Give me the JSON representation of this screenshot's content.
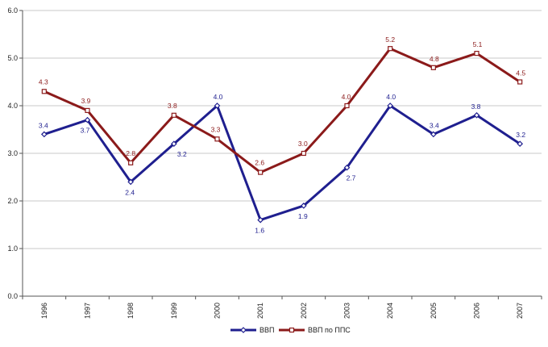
{
  "chart_data": {
    "type": "line",
    "categories": [
      "1996",
      "1997",
      "1998",
      "1999",
      "2000",
      "2001",
      "2002",
      "2003",
      "2004",
      "2005",
      "2006",
      "2007"
    ],
    "ylim": [
      0,
      6
    ],
    "yticks": [
      0,
      1,
      2,
      3,
      4,
      5,
      6
    ],
    "ytick_labels": [
      "0.0",
      "1.0",
      "2.0",
      "3.0",
      "4.0",
      "5.0",
      "6.0"
    ],
    "grid": "horizontal",
    "legend_position": "bottom",
    "series": [
      {
        "name": "ВВП",
        "color": "#1f1f8f",
        "label_color": "#1f1f8f",
        "marker": "diamond",
        "values": [
          3.4,
          3.7,
          2.4,
          3.2,
          4.0,
          1.6,
          1.9,
          2.7,
          4.0,
          3.4,
          3.8,
          3.2
        ],
        "labels": [
          "3.4",
          "3.7",
          "2.4",
          "3.2",
          "4.0",
          "1.6",
          "1.9",
          "2.7",
          "4.0",
          "3.4",
          "3.8",
          "3.2"
        ]
      },
      {
        "name": "ВВП по ППС",
        "color": "#8b1a1a",
        "label_color": "#8b1a1a",
        "marker": "square",
        "values": [
          4.3,
          3.9,
          2.8,
          3.8,
          3.3,
          2.6,
          3.0,
          4.0,
          5.2,
          4.8,
          5.1,
          4.5
        ],
        "labels": [
          "4.3",
          "3.9",
          "2.8",
          "3.8",
          "3.3",
          "2.6",
          "3.0",
          "4.0",
          "5.2",
          "4.8",
          "5.1",
          "4.5"
        ]
      }
    ]
  }
}
